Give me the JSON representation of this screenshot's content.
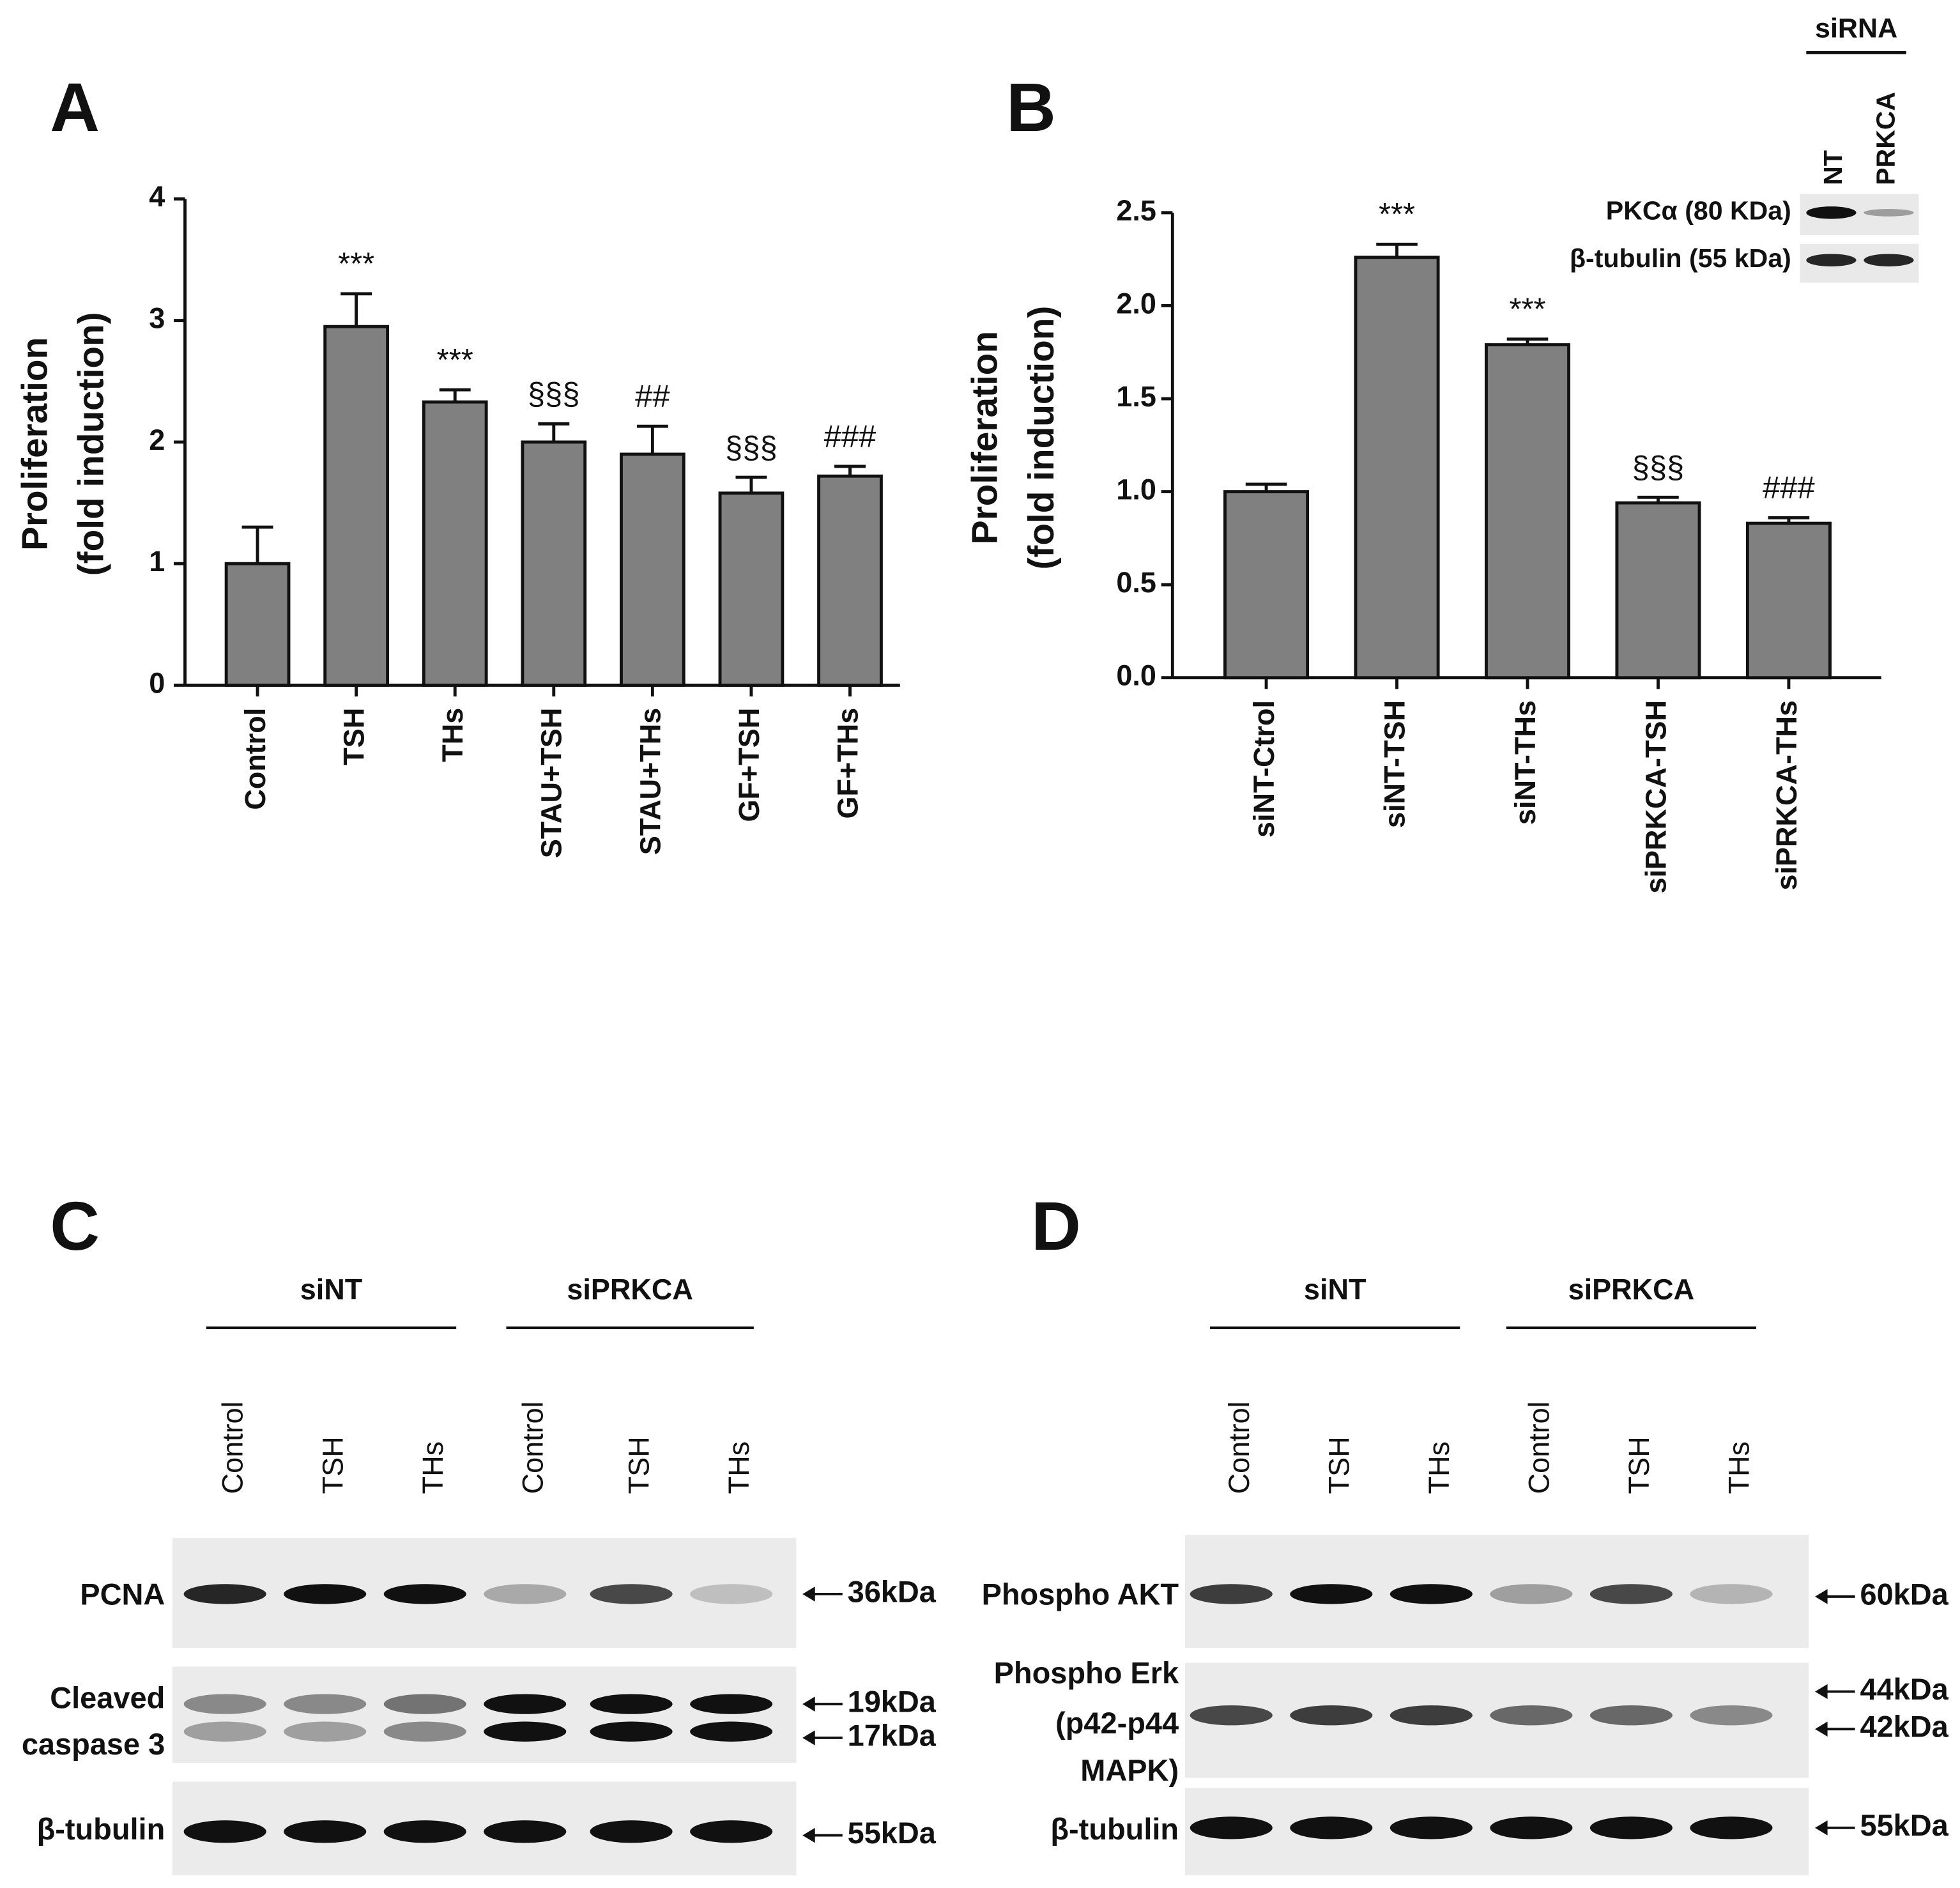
{
  "chart_data": [
    {
      "type": "bar",
      "panel": "A",
      "ylabel": [
        "Proliferation",
        "(fold induction)"
      ],
      "categories": [
        "Control",
        "TSH",
        "THs",
        "STAU+TSH",
        "STAU+THs",
        "GF+TSH",
        "GF+THs"
      ],
      "values": [
        1.0,
        2.95,
        2.33,
        2.0,
        1.9,
        1.58,
        1.72
      ],
      "errors": [
        0.3,
        0.27,
        0.1,
        0.15,
        0.23,
        0.13,
        0.08
      ],
      "annotations": [
        null,
        "***",
        "***",
        "§§§",
        "##",
        "§§§",
        "###"
      ],
      "color": "#808080",
      "ylim": [
        0,
        4
      ],
      "yticks": [
        0,
        1,
        2,
        3,
        4
      ]
    },
    {
      "type": "bar",
      "panel": "B",
      "ylabel": [
        "Proliferation",
        "(fold induction)"
      ],
      "categories": [
        "siNT-Ctrol",
        "siNT-TSH",
        "siNT-THs",
        "siPRKCA-TSH",
        "siPRKCA-THs"
      ],
      "values": [
        1.0,
        2.26,
        1.79,
        0.94,
        0.83
      ],
      "errors": [
        0.04,
        0.07,
        0.03,
        0.03,
        0.03
      ],
      "annotations": [
        null,
        "***",
        "***",
        "§§§",
        "###"
      ],
      "color": "#808080",
      "ylim": [
        0,
        2.5
      ],
      "yticks": [
        {
          "value": 0,
          "label": "0.0"
        },
        0.5,
        {
          "value": 1,
          "label": "1.0"
        },
        1.5,
        {
          "value": 2,
          "label": "2.0"
        },
        2.5
      ]
    }
  ],
  "inset": {
    "group": "siRNA",
    "lanes": [
      "NT",
      "PRKCA"
    ],
    "rows": [
      "PKCα (80 KDa)",
      "β-tubulin (55 kDa)"
    ]
  },
  "blots": [
    {
      "panel": "C",
      "groups": [
        "siNT",
        "siPRKCA"
      ],
      "lanes": [
        "Control",
        "TSH",
        "THs",
        "Control",
        "TSH",
        "THs"
      ],
      "rows": [
        {
          "label": [
            "PCNA"
          ],
          "markers": [
            "36kDa"
          ]
        },
        {
          "label": [
            "Cleaved",
            "caspase 3"
          ],
          "markers": [
            "19kDa",
            "17kDa"
          ]
        },
        {
          "label": [
            "β-tubulin"
          ],
          "markers": [
            "55kDa"
          ]
        }
      ]
    },
    {
      "panel": "D",
      "groups": [
        "siNT",
        "siPRKCA"
      ],
      "lanes": [
        "Control",
        "TSH",
        "THs",
        "Control",
        "TSH",
        "THs"
      ],
      "rows": [
        {
          "label": [
            "Phospho AKT"
          ],
          "markers": [
            "60kDa"
          ]
        },
        {
          "label": [
            "Phospho Erk",
            "(p42-p44",
            "MAPK)"
          ],
          "markers": [
            "44kDa",
            "42kDa"
          ]
        },
        {
          "label": [
            "β-tubulin"
          ],
          "markers": [
            "55kDa"
          ]
        }
      ]
    }
  ]
}
